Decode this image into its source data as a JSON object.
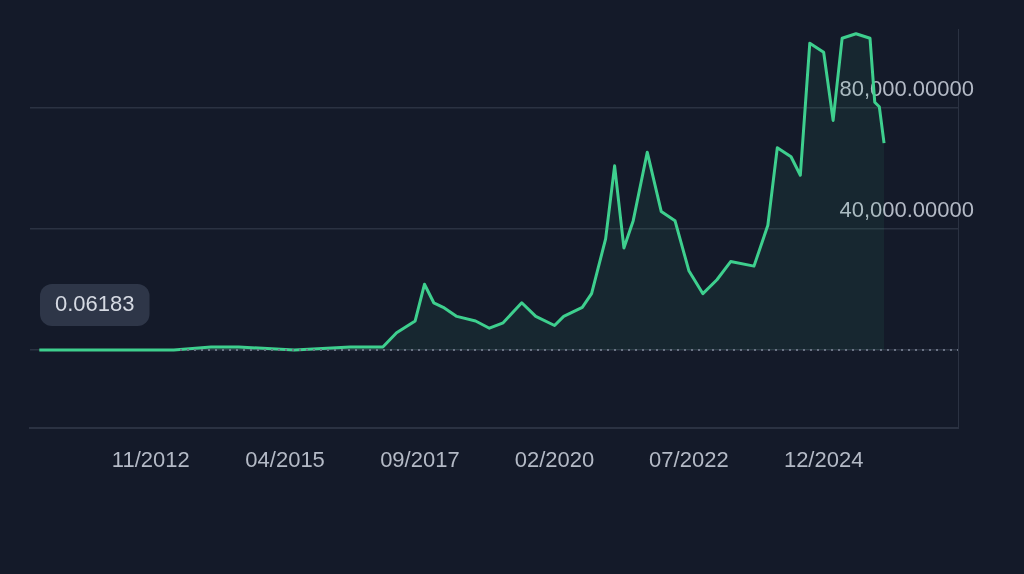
{
  "chart_data": {
    "type": "area",
    "x": [
      "2010-11",
      "2011-06",
      "2012-06",
      "2013-04",
      "2013-12",
      "2014-06",
      "2015-06",
      "2016-06",
      "2017-01",
      "2017-04",
      "2017-08",
      "2017-10",
      "2017-12",
      "2018-02",
      "2018-05",
      "2018-09",
      "2018-12",
      "2019-03",
      "2019-07",
      "2019-10",
      "2020-02",
      "2020-04",
      "2020-08",
      "2020-10",
      "2021-01",
      "2021-03",
      "2021-05",
      "2021-07",
      "2021-10",
      "2022-01",
      "2022-04",
      "2022-07",
      "2022-10",
      "2023-01",
      "2023-04",
      "2023-09",
      "2023-12",
      "2024-02",
      "2024-05",
      "2024-07",
      "2024-09",
      "2024-12",
      "2025-02",
      "2025-04",
      "2025-07",
      "2025-10",
      "2025-11",
      "2025-12",
      "2026-01"
    ],
    "series": [
      {
        "color": "#3ecf8e",
        "values": [
          0,
          0,
          0,
          0,
          1000,
          1000,
          0,
          1000,
          1000,
          5700,
          9600,
          21700,
          15600,
          14100,
          11100,
          9600,
          7200,
          9000,
          15600,
          11100,
          8100,
          11100,
          14100,
          18600,
          36700,
          60800,
          33700,
          42700,
          65300,
          45700,
          42700,
          26200,
          18600,
          23200,
          29200,
          27700,
          41200,
          66800,
          63800,
          57700,
          101300,
          98300,
          75800,
          102900,
          104400,
          102900,
          81800,
          80300,
          68300
        ]
      }
    ],
    "xlim": [
      "2010-09",
      "2027-05"
    ],
    "xticks": [
      {
        "value": "2012-11",
        "label": "11/2012"
      },
      {
        "value": "2015-04",
        "label": "04/2015"
      },
      {
        "value": "2017-09",
        "label": "09/2017"
      },
      {
        "value": "2020-02",
        "label": "02/2020"
      },
      {
        "value": "2022-07",
        "label": "07/2022"
      },
      {
        "value": "2024-12",
        "label": "12/2024"
      }
    ],
    "ylim": [
      -25600,
      105900
    ],
    "yticks": [
      {
        "value": 0,
        "label": null
      },
      {
        "value": 40000,
        "label": "40,000.00000"
      },
      {
        "value": 80000,
        "label": "80,000.00000"
      }
    ],
    "grid": "y",
    "ref_lines": [
      {
        "axis": "y",
        "value": 0.06183,
        "label": "0.06183",
        "line_style": "dotted"
      }
    ]
  }
}
